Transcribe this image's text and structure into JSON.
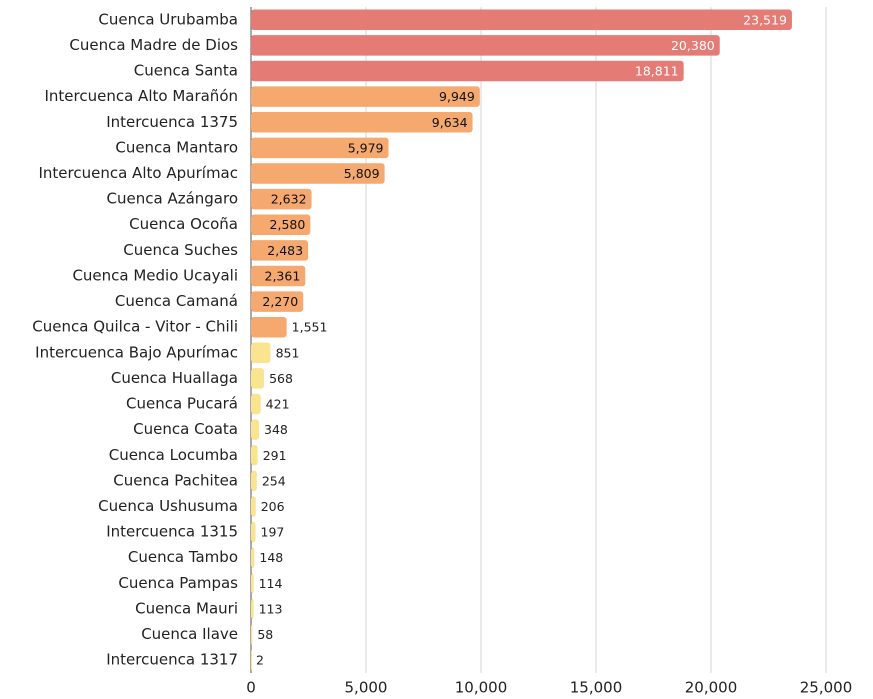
{
  "chart_data": {
    "type": "barh",
    "categories": [
      "Cuenca Urubamba",
      "Cuenca Madre de Dios",
      "Cuenca Santa",
      "Intercuenca Alto Marañón",
      "Intercuenca 1375",
      "Cuenca Mantaro",
      "Intercuenca Alto Apurímac",
      "Cuenca Azángaro",
      "Cuenca Ocoña",
      "Cuenca Suches",
      "Cuenca Medio Ucayali",
      "Cuenca Camaná",
      "Cuenca Quilca - Vitor - Chili",
      "Intercuenca Bajo Apurímac",
      "Cuenca Huallaga",
      "Cuenca Pucará",
      "Cuenca Coata",
      "Cuenca Locumba",
      "Cuenca Pachitea",
      "Cuenca Ushusuma",
      "Intercuenca 1315",
      "Cuenca Tambo",
      "Cuenca Pampas",
      "Cuenca Mauri",
      "Cuenca Ilave",
      "Intercuenca 1317"
    ],
    "values": [
      23519,
      20380,
      18811,
      9949,
      9634,
      5979,
      5809,
      2632,
      2580,
      2483,
      2361,
      2270,
      1551,
      851,
      568,
      421,
      348,
      291,
      254,
      206,
      197,
      148,
      114,
      113,
      58,
      2
    ],
    "value_labels": [
      "23,519",
      "20,380",
      "18,811",
      "9,949",
      "9,634",
      "5,979",
      "5,809",
      "2,632",
      "2,580",
      "2,483",
      "2,361",
      "2,270",
      "1,551",
      "851",
      "568",
      "421",
      "348",
      "291",
      "254",
      "206",
      "197",
      "148",
      "114",
      "113",
      "58",
      "2"
    ],
    "colors": [
      "#e47b74",
      "#e47b74",
      "#e47b74",
      "#f5a96f",
      "#f5a96f",
      "#f5a96f",
      "#f5a96f",
      "#f5a96f",
      "#f5a96f",
      "#f5a96f",
      "#f5a96f",
      "#f5a96f",
      "#f5a96f",
      "#fae490",
      "#fae490",
      "#fae490",
      "#fae490",
      "#fae490",
      "#fae490",
      "#fae490",
      "#fae490",
      "#fae490",
      "#fae490",
      "#fae490",
      "#fae490",
      "#fae490"
    ],
    "xlim": [
      0,
      25000
    ],
    "xticks": [
      0,
      {
        "value": 5000,
        "label": "5,000"
      },
      {
        "value": 10000,
        "label": "10,000"
      },
      {
        "value": 15000,
        "label": "15,000"
      },
      {
        "value": 20000,
        "label": "20,000"
      },
      {
        "value": 25000,
        "label": "25,000"
      }
    ],
    "grid": true
  }
}
